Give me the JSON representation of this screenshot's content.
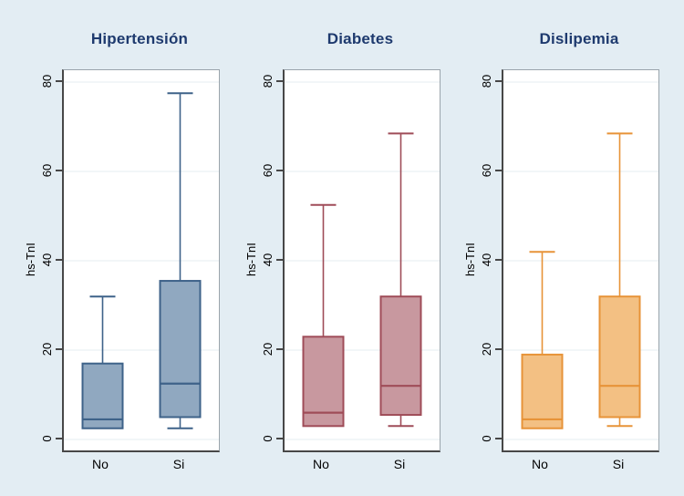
{
  "figure": {
    "background": "#e3edf3",
    "plot_background": "#ffffff",
    "gridline_color": "#e4edf2",
    "axis_color": "#474747",
    "title_color": "#1e3a6e"
  },
  "chart_data": {
    "type": "boxplot",
    "ylabel": "hs-TnI",
    "categories": [
      "No",
      "Si"
    ],
    "y_ticks": [
      0,
      20,
      40,
      60,
      80
    ],
    "ylim": [
      0,
      80
    ],
    "grid": true,
    "panels": [
      {
        "title": "Hipertensión",
        "fill": "#90a8c0",
        "stroke": "#3e6289",
        "boxes": [
          {
            "category": "No",
            "whisker_low": 2.5,
            "q1": 2.5,
            "median": 4.5,
            "q3": 17,
            "whisker_high": 32
          },
          {
            "category": "Si",
            "whisker_low": 2.5,
            "q1": 5,
            "median": 12.5,
            "q3": 35.5,
            "whisker_high": 77.5
          }
        ]
      },
      {
        "title": "Diabetes",
        "fill": "#c8989f",
        "stroke": "#9f4c58",
        "boxes": [
          {
            "category": "No",
            "whisker_low": 3,
            "q1": 3,
            "median": 6,
            "q3": 23,
            "whisker_high": 52.5
          },
          {
            "category": "Si",
            "whisker_low": 3,
            "q1": 5.5,
            "median": 12,
            "q3": 32,
            "whisker_high": 68.5
          }
        ]
      },
      {
        "title": "Dislipemia",
        "fill": "#f3c083",
        "stroke": "#e79338",
        "boxes": [
          {
            "category": "No",
            "whisker_low": 2.5,
            "q1": 2.5,
            "median": 4.5,
            "q3": 19,
            "whisker_high": 42
          },
          {
            "category": "Si",
            "whisker_low": 3,
            "q1": 5,
            "median": 12,
            "q3": 32,
            "whisker_high": 68.5
          }
        ]
      }
    ]
  }
}
